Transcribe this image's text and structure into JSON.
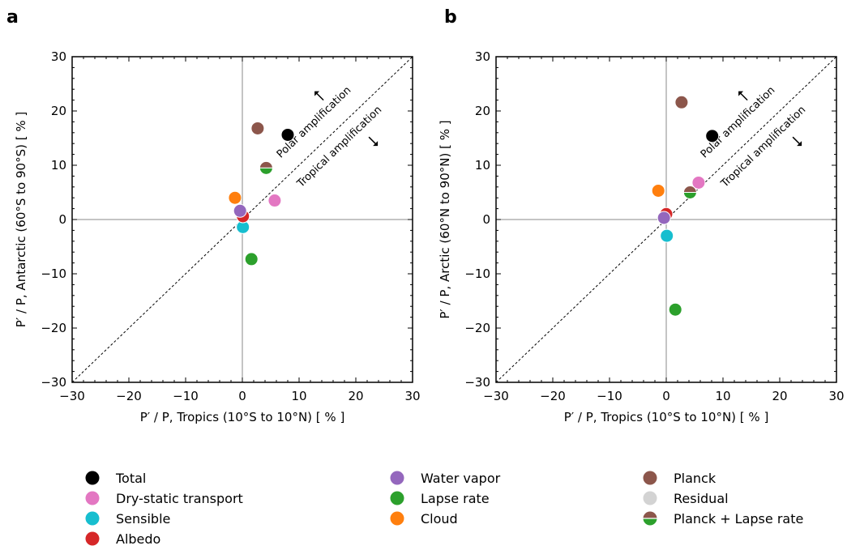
{
  "chart_data": [
    {
      "type": "scatter",
      "panel_label": "a",
      "xlabel": "P′ / P, Tropics (10°S to 10°N) [ % ]",
      "ylabel": "P′ / P, Antarctic (60°S to 90°S) [ % ]",
      "xlim": [
        -30,
        30
      ],
      "ylim": [
        -30,
        30
      ],
      "xticks": [
        "−30",
        "−20",
        "−10",
        "0",
        "10",
        "20",
        "30"
      ],
      "yticks": [
        "−30",
        "−20",
        "−10",
        "0",
        "10",
        "20",
        "30"
      ],
      "annotations": [
        "Polar amplification",
        "Tropical amplification"
      ],
      "points": [
        {
          "series": "Total",
          "x": 8.0,
          "y": 15.6
        },
        {
          "series": "Dry-static transport",
          "x": 5.7,
          "y": 3.5
        },
        {
          "series": "Sensible",
          "x": 0.1,
          "y": -1.4
        },
        {
          "series": "Albedo",
          "x": 0.1,
          "y": 0.6
        },
        {
          "series": "Water vapor",
          "x": -0.4,
          "y": 1.6
        },
        {
          "series": "Lapse rate",
          "x": 1.6,
          "y": -7.3
        },
        {
          "series": "Cloud",
          "x": -1.3,
          "y": 4.0
        },
        {
          "series": "Planck",
          "x": 2.7,
          "y": 16.8
        },
        {
          "series": "Planck + Lapse rate",
          "x": 4.2,
          "y": 9.5
        }
      ]
    },
    {
      "type": "scatter",
      "panel_label": "b",
      "xlabel": "P′ / P, Tropics (10°S to 10°N) [ % ]",
      "ylabel": "P′ / P, Arctic (60°N to 90°N) [ % ]",
      "xlim": [
        -30,
        30
      ],
      "ylim": [
        -30,
        30
      ],
      "xticks": [
        "−30",
        "−20",
        "−10",
        "0",
        "10",
        "20",
        "30"
      ],
      "yticks": [
        "−30",
        "−20",
        "−10",
        "0",
        "10",
        "20",
        "30"
      ],
      "annotations": [
        "Polar amplification",
        "Tropical amplification"
      ],
      "points": [
        {
          "series": "Total",
          "x": 8.1,
          "y": 15.4
        },
        {
          "series": "Dry-static transport",
          "x": 5.7,
          "y": 6.8
        },
        {
          "series": "Sensible",
          "x": 0.1,
          "y": -3.0
        },
        {
          "series": "Albedo",
          "x": 0.0,
          "y": 1.0
        },
        {
          "series": "Water vapor",
          "x": -0.4,
          "y": 0.3
        },
        {
          "series": "Lapse rate",
          "x": 1.6,
          "y": -16.6
        },
        {
          "series": "Cloud",
          "x": -1.4,
          "y": 5.3
        },
        {
          "series": "Planck",
          "x": 2.7,
          "y": 21.6
        },
        {
          "series": "Planck + Lapse rate",
          "x": 4.2,
          "y": 5.0
        }
      ]
    }
  ],
  "legend": [
    {
      "label": "Total",
      "color": "#000000"
    },
    {
      "label": "Dry-static transport",
      "color": "#e377c2"
    },
    {
      "label": "Sensible",
      "color": "#17becf"
    },
    {
      "label": "Albedo",
      "color": "#d62728"
    },
    {
      "label": "Water vapor",
      "color": "#9467bd"
    },
    {
      "label": "Lapse rate",
      "color": "#2ca02c"
    },
    {
      "label": "Cloud",
      "color": "#ff7f0e"
    },
    {
      "label": "Planck",
      "color": "#8c564b"
    },
    {
      "label": "Residual",
      "color": "#d3d3d3"
    },
    {
      "label": "Planck + Lapse rate",
      "color": "#8c564b",
      "color2": "#2ca02c",
      "half": true
    }
  ],
  "colors": {
    "Total": "#000000",
    "Dry-static transport": "#e377c2",
    "Sensible": "#17becf",
    "Albedo": "#d62728",
    "Water vapor": "#9467bd",
    "Lapse rate": "#2ca02c",
    "Cloud": "#ff7f0e",
    "Planck": "#8c564b",
    "Residual": "#d3d3d3"
  }
}
